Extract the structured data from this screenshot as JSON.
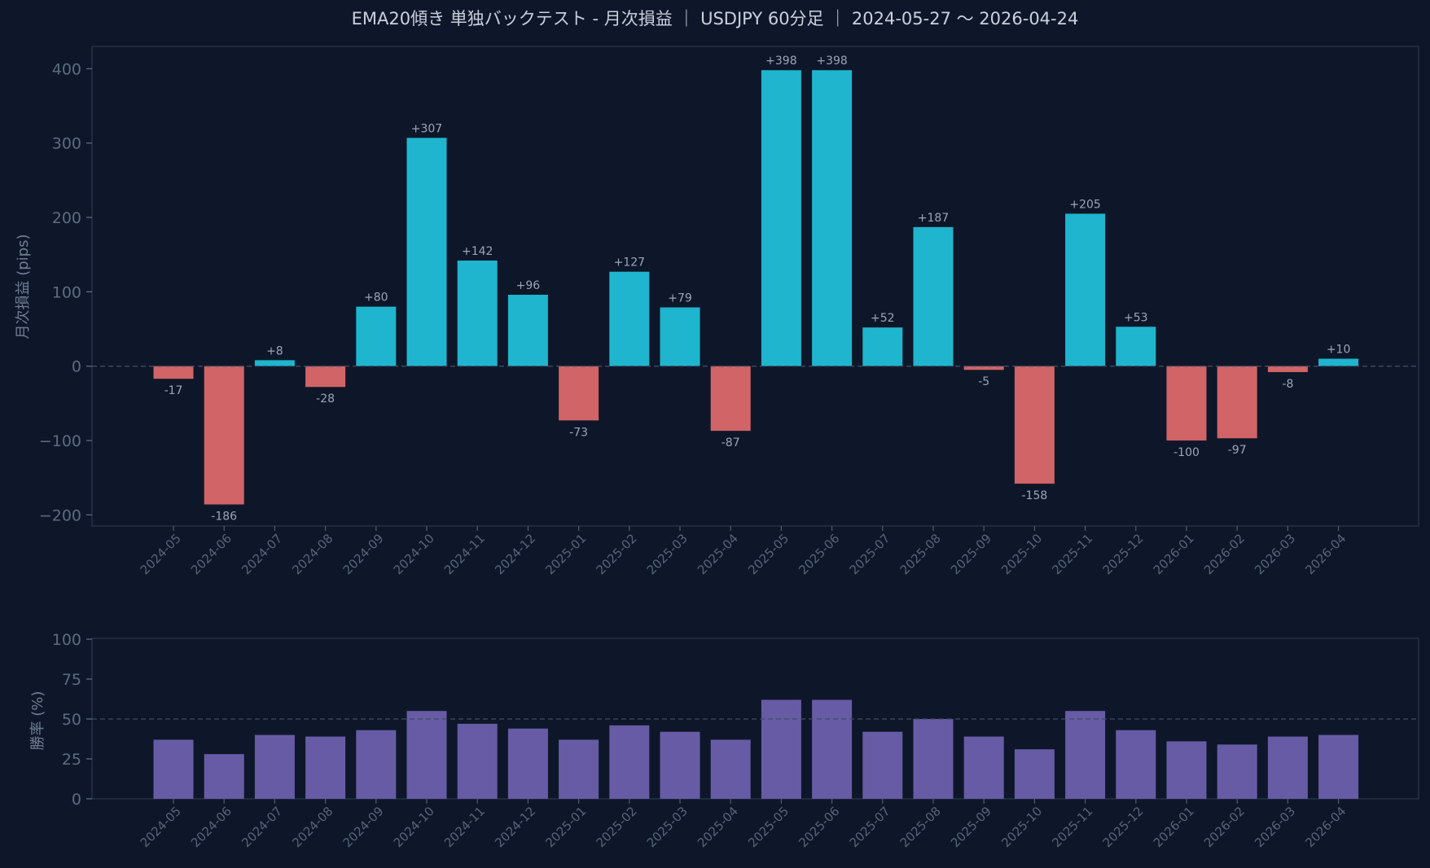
{
  "chart_data": [
    {
      "type": "bar",
      "title": "EMA20傾き 単独バックテスト - 月次損益 ｜ USDJPY 60分足 ｜ 2024-05-27 〜 2026-04-24",
      "ylabel": "月次損益 (pips)",
      "xlabel": "",
      "ylim": [
        -215,
        430
      ],
      "yticks": [
        400,
        300,
        200,
        100,
        0,
        -100,
        -200
      ],
      "ytick_labels": [
        "400",
        "300",
        "200",
        "100",
        "0",
        "−100",
        "−200"
      ],
      "reference_line": 0,
      "categories": [
        "2024-05",
        "2024-06",
        "2024-07",
        "2024-08",
        "2024-09",
        "2024-10",
        "2024-11",
        "2024-12",
        "2025-01",
        "2025-02",
        "2025-03",
        "2025-04",
        "2025-05",
        "2025-06",
        "2025-07",
        "2025-08",
        "2025-09",
        "2025-10",
        "2025-11",
        "2025-12",
        "2026-01",
        "2026-02",
        "2026-03",
        "2026-04"
      ],
      "values": [
        -17,
        -186,
        8,
        -28,
        80,
        307,
        142,
        96,
        -73,
        127,
        79,
        -87,
        398,
        398,
        52,
        187,
        -5,
        -158,
        205,
        53,
        -100,
        -97,
        -8,
        10
      ],
      "data_labels": [
        "-17",
        "-186",
        "+8",
        "-28",
        "+80",
        "+307",
        "+142",
        "+96",
        "-73",
        "+127",
        "+79",
        "-87",
        "+398",
        "+398",
        "+52",
        "+187",
        "-5",
        "-158",
        "+205",
        "+53",
        "-100",
        "-97",
        "-8",
        "+10"
      ],
      "colors": {
        "positive": "#1fb5cf",
        "negative": "#d16466"
      }
    },
    {
      "type": "bar",
      "ylabel": "勝率 (%)",
      "xlabel": "",
      "ylim": [
        0,
        100
      ],
      "yticks": [
        100,
        75,
        50,
        25,
        0
      ],
      "ytick_labels": [
        "100",
        "75",
        "50",
        "25",
        "0"
      ],
      "reference_line": 50,
      "categories": [
        "2024-05",
        "2024-06",
        "2024-07",
        "2024-08",
        "2024-09",
        "2024-10",
        "2024-11",
        "2024-12",
        "2025-01",
        "2025-02",
        "2025-03",
        "2025-04",
        "2025-05",
        "2025-06",
        "2025-07",
        "2025-08",
        "2025-09",
        "2025-10",
        "2025-11",
        "2025-12",
        "2026-01",
        "2026-02",
        "2026-03",
        "2026-04"
      ],
      "values": [
        37,
        28,
        40,
        39,
        43,
        55,
        47,
        44,
        37,
        46,
        42,
        37,
        62,
        62,
        42,
        50,
        39,
        31,
        55,
        43,
        36,
        34,
        39,
        40
      ],
      "colors": {
        "bar": "#675ba6"
      }
    }
  ]
}
